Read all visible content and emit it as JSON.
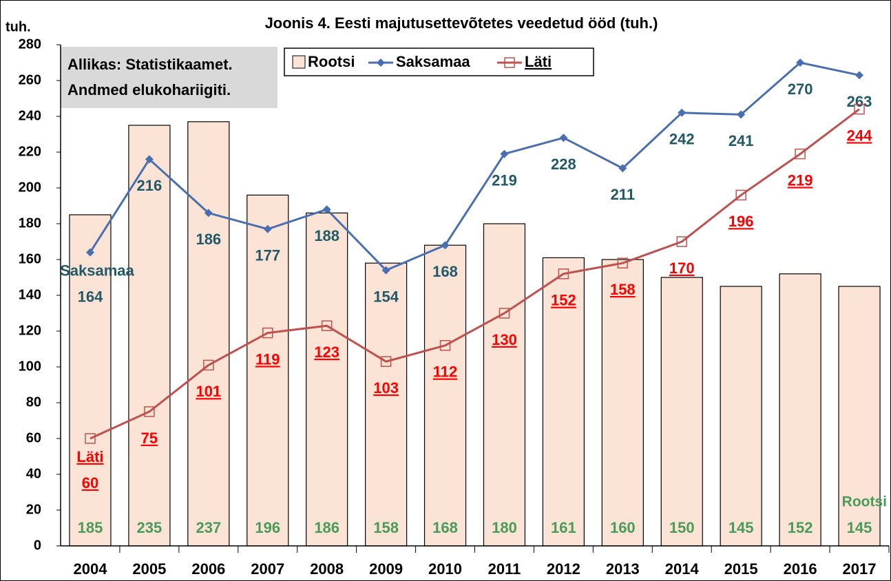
{
  "chart_data": {
    "type": "bar",
    "title": "Joonis 4. Eesti majutusettevõtetes veedetud ööd (tuh.)",
    "y_label": "tuh.",
    "source": [
      "Allikas: Statistikaamet.",
      "Andmed elukohariigiti."
    ],
    "categories": [
      "2004",
      "2005",
      "2006",
      "2007",
      "2008",
      "2009",
      "2010",
      "2011",
      "2012",
      "2013",
      "2014",
      "2015",
      "2016",
      "2017"
    ],
    "series": [
      {
        "name": "Rootsi",
        "type": "bar",
        "color": "#fbe4d5",
        "label_color": "#4a9a5b",
        "values": [
          185,
          235,
          237,
          196,
          186,
          158,
          168,
          180,
          161,
          160,
          150,
          145,
          152,
          145
        ]
      },
      {
        "name": "Saksamaa",
        "type": "line",
        "marker": "diamond",
        "color": "#4a6fb0",
        "label_color": "#215968",
        "values": [
          164,
          216,
          186,
          177,
          188,
          154,
          168,
          219,
          228,
          211,
          242,
          241,
          270,
          263
        ]
      },
      {
        "name": "Läti",
        "type": "line",
        "marker": "square",
        "color": "#c0504d",
        "label_color": "#ff0000",
        "values": [
          60,
          75,
          101,
          119,
          123,
          103,
          112,
          130,
          152,
          158,
          170,
          196,
          219,
          244
        ]
      }
    ],
    "ylim": [
      0,
      280
    ],
    "yticks": [
      0,
      20,
      40,
      60,
      80,
      100,
      120,
      140,
      160,
      180,
      200,
      220,
      240,
      260,
      280
    ],
    "grid": false
  }
}
